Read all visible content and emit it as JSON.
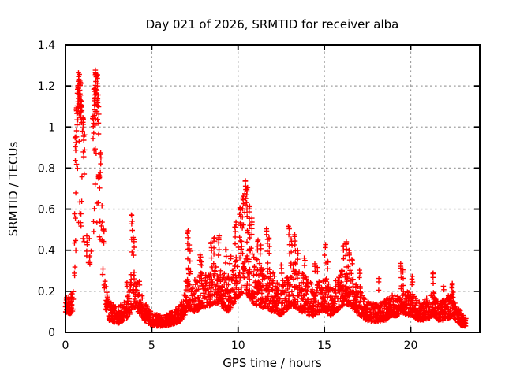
{
  "window": {
    "background": "#ffffff"
  },
  "chart_data": {
    "type": "scatter",
    "title": "Day 021 of 2026, SRMTID for receiver alba",
    "xlabel": "GPS time / hours",
    "ylabel": "SRMTID / TECUs",
    "xlim": [
      0,
      24
    ],
    "ylim": [
      0,
      1.4
    ],
    "xticks": {
      "values": [
        0,
        5,
        10,
        15,
        20
      ],
      "labels": [
        "0",
        "5",
        "10",
        "15",
        "20"
      ]
    },
    "yticks": {
      "values": [
        0,
        0.2,
        0.4,
        0.6,
        0.8,
        1.0,
        1.2,
        1.4
      ],
      "labels": [
        "0",
        "0.2",
        "0.4",
        "0.6",
        "0.8",
        "1",
        "1.2",
        "1.4"
      ]
    },
    "grid": true,
    "legend": "none",
    "marker": {
      "symbol": "plus",
      "color": "#ff0000",
      "size": 7,
      "stroke_width": 1.4
    },
    "grid_color": "#a0a0a0",
    "border_color": "#000000",
    "series_name": "SRMTID",
    "seed": 42,
    "band_profile": [
      [
        0.0,
        0.1,
        0.19,
        110
      ],
      [
        0.3,
        0.09,
        0.18,
        110
      ],
      [
        0.45,
        0.1,
        0.22,
        80
      ],
      [
        0.55,
        0.3,
        0.75,
        30
      ],
      [
        0.7,
        0.5,
        1.0,
        32
      ],
      [
        0.85,
        0.55,
        1.05,
        32
      ],
      [
        1.0,
        0.45,
        0.95,
        28
      ],
      [
        1.15,
        0.35,
        0.65,
        28
      ],
      [
        1.35,
        0.3,
        0.52,
        32
      ],
      [
        1.55,
        0.4,
        0.85,
        28
      ],
      [
        1.7,
        0.5,
        1.0,
        30
      ],
      [
        1.85,
        0.5,
        1.0,
        30
      ],
      [
        2.0,
        0.45,
        0.75,
        30
      ],
      [
        2.15,
        0.28,
        0.58,
        35
      ],
      [
        2.3,
        0.12,
        0.38,
        60
      ],
      [
        2.5,
        0.06,
        0.16,
        110
      ],
      [
        3.0,
        0.04,
        0.12,
        110
      ],
      [
        3.4,
        0.06,
        0.16,
        110
      ],
      [
        3.7,
        0.08,
        0.2,
        110
      ],
      [
        3.85,
        0.12,
        0.34,
        90
      ],
      [
        4.05,
        0.12,
        0.32,
        90
      ],
      [
        4.3,
        0.09,
        0.26,
        100
      ],
      [
        4.55,
        0.06,
        0.15,
        110
      ],
      [
        4.85,
        0.04,
        0.11,
        115
      ],
      [
        5.2,
        0.03,
        0.09,
        120
      ],
      [
        5.7,
        0.03,
        0.08,
        120
      ],
      [
        6.2,
        0.04,
        0.1,
        120
      ],
      [
        6.6,
        0.05,
        0.13,
        115
      ],
      [
        6.9,
        0.08,
        0.2,
        110
      ],
      [
        7.1,
        0.12,
        0.32,
        100
      ],
      [
        7.35,
        0.1,
        0.28,
        105
      ],
      [
        7.6,
        0.1,
        0.26,
        105
      ],
      [
        7.85,
        0.12,
        0.3,
        105
      ],
      [
        8.1,
        0.12,
        0.28,
        105
      ],
      [
        8.35,
        0.13,
        0.3,
        105
      ],
      [
        8.6,
        0.14,
        0.34,
        105
      ],
      [
        8.9,
        0.14,
        0.33,
        105
      ],
      [
        9.15,
        0.12,
        0.3,
        105
      ],
      [
        9.4,
        0.1,
        0.28,
        105
      ],
      [
        9.65,
        0.12,
        0.3,
        105
      ],
      [
        9.85,
        0.15,
        0.38,
        100
      ],
      [
        10.1,
        0.18,
        0.48,
        95
      ],
      [
        10.4,
        0.2,
        0.55,
        95
      ],
      [
        10.65,
        0.17,
        0.48,
        95
      ],
      [
        10.9,
        0.14,
        0.4,
        100
      ],
      [
        11.15,
        0.13,
        0.35,
        100
      ],
      [
        11.4,
        0.12,
        0.32,
        105
      ],
      [
        11.7,
        0.12,
        0.35,
        105
      ],
      [
        11.95,
        0.1,
        0.3,
        105
      ],
      [
        12.2,
        0.1,
        0.28,
        105
      ],
      [
        12.45,
        0.08,
        0.22,
        105
      ],
      [
        12.7,
        0.1,
        0.28,
        105
      ],
      [
        12.95,
        0.12,
        0.33,
        105
      ],
      [
        13.25,
        0.13,
        0.36,
        105
      ],
      [
        13.55,
        0.1,
        0.3,
        105
      ],
      [
        13.85,
        0.1,
        0.28,
        105
      ],
      [
        14.15,
        0.08,
        0.26,
        105
      ],
      [
        14.45,
        0.08,
        0.24,
        105
      ],
      [
        14.75,
        0.1,
        0.26,
        105
      ],
      [
        15.05,
        0.1,
        0.28,
        105
      ],
      [
        15.35,
        0.08,
        0.24,
        105
      ],
      [
        15.65,
        0.1,
        0.26,
        105
      ],
      [
        15.95,
        0.12,
        0.3,
        105
      ],
      [
        16.2,
        0.14,
        0.34,
        105
      ],
      [
        16.5,
        0.13,
        0.32,
        105
      ],
      [
        16.8,
        0.1,
        0.26,
        105
      ],
      [
        17.1,
        0.08,
        0.22,
        105
      ],
      [
        17.4,
        0.06,
        0.17,
        110
      ],
      [
        17.8,
        0.05,
        0.14,
        110
      ],
      [
        18.2,
        0.05,
        0.14,
        110
      ],
      [
        18.6,
        0.06,
        0.16,
        110
      ],
      [
        18.9,
        0.08,
        0.18,
        110
      ],
      [
        19.2,
        0.08,
        0.2,
        108
      ],
      [
        19.5,
        0.1,
        0.24,
        108
      ],
      [
        19.8,
        0.08,
        0.2,
        108
      ],
      [
        20.1,
        0.08,
        0.2,
        108
      ],
      [
        20.45,
        0.06,
        0.15,
        110
      ],
      [
        20.8,
        0.06,
        0.16,
        110
      ],
      [
        21.1,
        0.07,
        0.18,
        108
      ],
      [
        21.35,
        0.08,
        0.2,
        108
      ],
      [
        21.6,
        0.06,
        0.16,
        108
      ],
      [
        21.9,
        0.06,
        0.16,
        108
      ],
      [
        22.2,
        0.07,
        0.18,
        108
      ],
      [
        22.45,
        0.08,
        0.2,
        108
      ],
      [
        22.7,
        0.05,
        0.13,
        110
      ],
      [
        23.0,
        0.03,
        0.09,
        110
      ],
      [
        23.2,
        0.03,
        0.07,
        100
      ]
    ],
    "spikes": [
      [
        0.58,
        0.95,
        6
      ],
      [
        0.65,
        1.1,
        9
      ],
      [
        0.72,
        1.2,
        11
      ],
      [
        0.78,
        1.26,
        13
      ],
      [
        0.85,
        1.22,
        11
      ],
      [
        0.92,
        1.12,
        9
      ],
      [
        1.0,
        1.04,
        7
      ],
      [
        1.08,
        0.96,
        5
      ],
      [
        1.6,
        1.05,
        7
      ],
      [
        1.68,
        1.18,
        10
      ],
      [
        1.76,
        1.27,
        13
      ],
      [
        1.83,
        1.25,
        12
      ],
      [
        1.9,
        1.16,
        8
      ],
      [
        1.95,
        0.76,
        8
      ],
      [
        2.02,
        0.88,
        5
      ],
      [
        2.2,
        0.5,
        4
      ],
      [
        3.55,
        0.25,
        3
      ],
      [
        3.85,
        0.57,
        7
      ],
      [
        3.95,
        0.46,
        5
      ],
      [
        7.08,
        0.5,
        7
      ],
      [
        7.2,
        0.42,
        4
      ],
      [
        7.8,
        0.38,
        4
      ],
      [
        7.9,
        0.34,
        3
      ],
      [
        8.45,
        0.44,
        5
      ],
      [
        8.62,
        0.46,
        5
      ],
      [
        8.88,
        0.47,
        6
      ],
      [
        9.3,
        0.41,
        4
      ],
      [
        9.55,
        0.37,
        3
      ],
      [
        9.85,
        0.53,
        6
      ],
      [
        10.12,
        0.6,
        7
      ],
      [
        10.28,
        0.66,
        6
      ],
      [
        10.42,
        0.74,
        9
      ],
      [
        10.53,
        0.7,
        7
      ],
      [
        10.66,
        0.62,
        6
      ],
      [
        10.8,
        0.55,
        5
      ],
      [
        11.12,
        0.45,
        4
      ],
      [
        11.3,
        0.42,
        3
      ],
      [
        11.68,
        0.5,
        6
      ],
      [
        11.8,
        0.46,
        4
      ],
      [
        12.5,
        0.33,
        3
      ],
      [
        12.95,
        0.52,
        6
      ],
      [
        13.1,
        0.45,
        4
      ],
      [
        13.3,
        0.47,
        5
      ],
      [
        13.45,
        0.4,
        3
      ],
      [
        13.85,
        0.36,
        3
      ],
      [
        14.45,
        0.34,
        3
      ],
      [
        14.62,
        0.31,
        2
      ],
      [
        15.05,
        0.42,
        4
      ],
      [
        15.2,
        0.35,
        3
      ],
      [
        16.08,
        0.42,
        4
      ],
      [
        16.25,
        0.44,
        5
      ],
      [
        16.45,
        0.4,
        4
      ],
      [
        16.6,
        0.36,
        3
      ],
      [
        17.05,
        0.3,
        3
      ],
      [
        18.15,
        0.26,
        3
      ],
      [
        19.45,
        0.33,
        5
      ],
      [
        19.58,
        0.3,
        3
      ],
      [
        20.1,
        0.27,
        4
      ],
      [
        21.3,
        0.29,
        4
      ],
      [
        21.9,
        0.22,
        2
      ],
      [
        22.4,
        0.24,
        4
      ]
    ]
  }
}
